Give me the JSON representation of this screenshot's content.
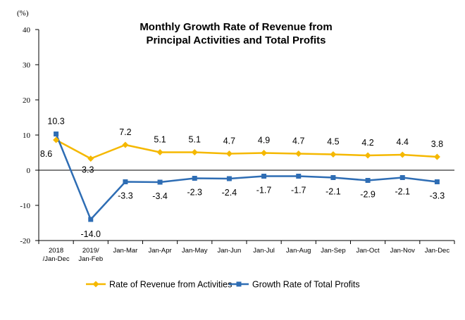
{
  "chart_data": {
    "type": "line",
    "title_lines": [
      "Monthly Growth Rate of Revenue from",
      "Principal Activities and Total Profits"
    ],
    "unit": "(%)",
    "categories": [
      [
        "2018",
        "/Jan-Dec"
      ],
      [
        "2019/",
        "Jan-Feb"
      ],
      [
        "Jan-Mar"
      ],
      [
        "Jan-Apr"
      ],
      [
        "Jan-May"
      ],
      [
        "Jan-Jun"
      ],
      [
        "Jan-Jul"
      ],
      [
        "Jan-Aug"
      ],
      [
        "Jan-Sep"
      ],
      [
        "Jan-Oct"
      ],
      [
        "Jan-Nov"
      ],
      [
        "Jan-Dec"
      ]
    ],
    "ylim": [
      -20,
      40
    ],
    "yticks": [
      40,
      30,
      20,
      10,
      0,
      -10,
      -20
    ],
    "grid": false,
    "legend_position": "bottom",
    "series": [
      {
        "name": "Rate of Revenue from Activities",
        "color": "#F5B800",
        "marker": "diamond",
        "values": [
          8.6,
          3.3,
          7.2,
          5.1,
          5.1,
          4.7,
          4.9,
          4.7,
          4.5,
          4.2,
          4.4,
          3.8
        ],
        "labels": [
          "8.6",
          "3.3",
          "7.2",
          "5.1",
          "5.1",
          "4.7",
          "4.9",
          "4.7",
          "4.5",
          "4.2",
          "4.4",
          "3.8"
        ]
      },
      {
        "name": "Growth Rate of Total Profits",
        "color": "#2E6DB4",
        "marker": "square",
        "values": [
          10.3,
          -14.0,
          -3.3,
          -3.4,
          -2.3,
          -2.4,
          -1.7,
          -1.7,
          -2.1,
          -2.9,
          -2.1,
          -3.3
        ],
        "labels": [
          "10.3",
          "-14.0",
          "-3.3",
          "-3.4",
          "-2.3",
          "-2.4",
          "-1.7",
          "-1.7",
          "-2.1",
          "-2.9",
          "-2.1",
          "-3.3"
        ]
      }
    ]
  }
}
